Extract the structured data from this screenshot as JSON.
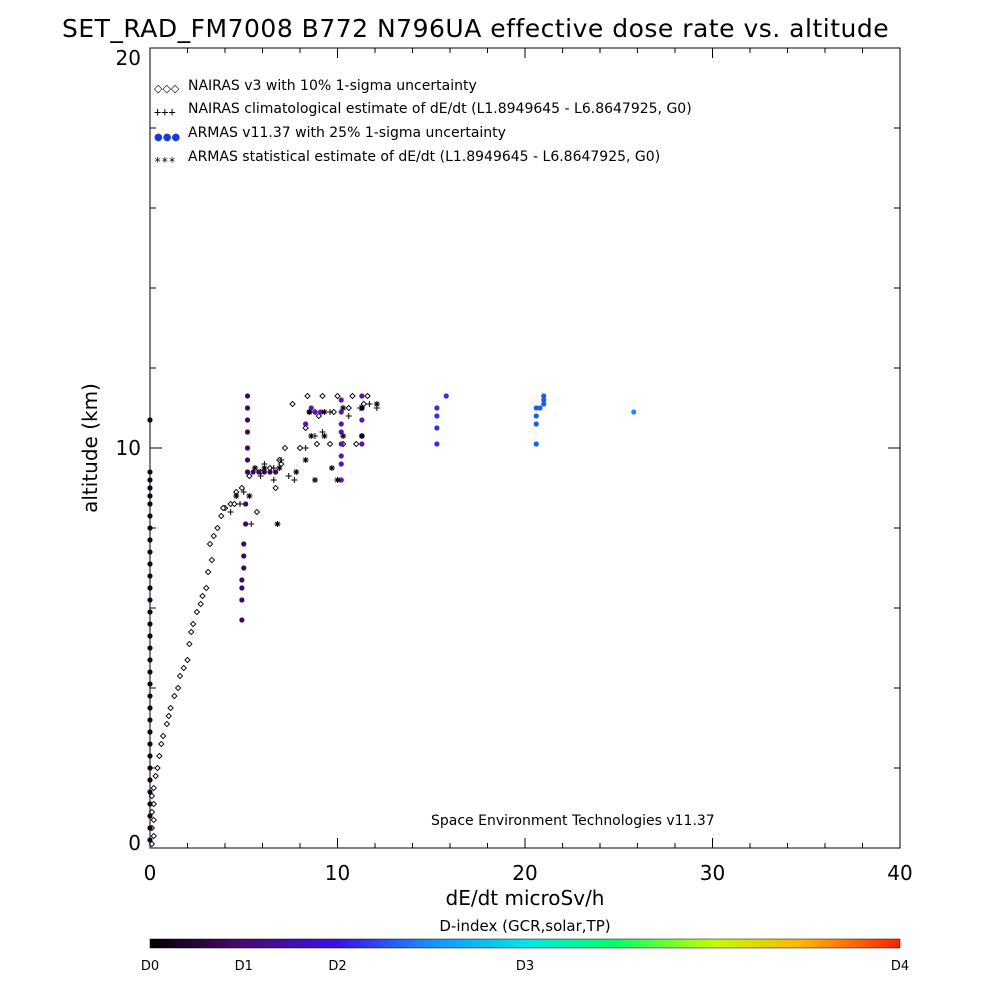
{
  "chart_data": {
    "type": "scatter",
    "title": "SET_RAD_FM7008  B772 N796UA effective dose rate vs. altitude",
    "xlabel": "dE/dt microSv/h",
    "ylabel": "altitude (km)",
    "xlim": [
      0,
      40
    ],
    "ylim": [
      0,
      20
    ],
    "x_ticks": [
      "0",
      "10",
      "20",
      "30",
      "40"
    ],
    "y_ticks": [
      "0",
      "10",
      "20"
    ],
    "legend_placement": "top-left",
    "legend": [
      {
        "symbol": "◇◇◇",
        "label": "NAIRAS v3 with 10% 1-sigma uncertainty"
      },
      {
        "symbol": "+++",
        "label": "NAIRAS climatological estimate of dE/dt (L1.8949645 - L6.8647925, G0)"
      },
      {
        "symbol": "●●●",
        "label": "ARMAS v11.37 with 25% 1-sigma uncertainty"
      },
      {
        "symbol": "***",
        "label": "ARMAS statistical estimate of dE/dt (L1.8949645 - L6.8647925, G0)"
      }
    ],
    "annotation": "Space Environment Technologies v11.37",
    "colorbar": {
      "title": "D-index (GCR,solar,TP)",
      "labels": [
        "D0",
        "D1",
        "D2",
        "D3",
        "D4"
      ],
      "label_positions": [
        0,
        0.125,
        0.25,
        0.5,
        1.0
      ]
    },
    "series": [
      {
        "name": "NAIRAS v3 with 10% 1-sigma uncertainty",
        "marker": "diamond",
        "points": [
          [
            0.1,
            0.1
          ],
          [
            0.2,
            0.3
          ],
          [
            0.1,
            0.5
          ],
          [
            0.2,
            0.7
          ],
          [
            0.1,
            0.9
          ],
          [
            0.2,
            1.1
          ],
          [
            0.1,
            1.3
          ],
          [
            0.2,
            1.5
          ],
          [
            0.3,
            1.8
          ],
          [
            0.4,
            2.0
          ],
          [
            0.5,
            2.3
          ],
          [
            0.6,
            2.6
          ],
          [
            0.7,
            2.8
          ],
          [
            0.9,
            3.1
          ],
          [
            1.0,
            3.3
          ],
          [
            1.1,
            3.5
          ],
          [
            1.3,
            3.8
          ],
          [
            1.5,
            4.0
          ],
          [
            1.6,
            4.3
          ],
          [
            1.8,
            4.5
          ],
          [
            2.0,
            4.7
          ],
          [
            2.1,
            5.1
          ],
          [
            2.2,
            5.4
          ],
          [
            2.3,
            5.6
          ],
          [
            2.5,
            5.9
          ],
          [
            2.7,
            6.1
          ],
          [
            2.8,
            6.3
          ],
          [
            3.0,
            6.5
          ],
          [
            3.1,
            6.9
          ],
          [
            3.3,
            7.2
          ],
          [
            3.2,
            7.6
          ],
          [
            3.4,
            7.8
          ],
          [
            3.6,
            8.0
          ],
          [
            3.8,
            8.3
          ],
          [
            4.0,
            8.5
          ],
          [
            4.3,
            8.6
          ],
          [
            4.6,
            8.9
          ],
          [
            4.9,
            9.0
          ],
          [
            5.3,
            9.3
          ],
          [
            5.9,
            9.4
          ],
          [
            6.4,
            9.5
          ],
          [
            6.9,
            9.7
          ],
          [
            7.2,
            10.0
          ],
          [
            8.0,
            10.0
          ],
          [
            8.9,
            10.1
          ],
          [
            9.6,
            10.1
          ],
          [
            10.3,
            10.1
          ],
          [
            11.0,
            10.1
          ],
          [
            8.3,
            10.5
          ],
          [
            9.0,
            10.8
          ],
          [
            9.8,
            10.9
          ],
          [
            10.6,
            11.0
          ],
          [
            11.4,
            11.1
          ],
          [
            7.6,
            11.1
          ],
          [
            8.4,
            11.3
          ],
          [
            9.2,
            11.3
          ],
          [
            10.0,
            11.3
          ],
          [
            10.8,
            11.3
          ],
          [
            11.6,
            11.3
          ],
          [
            5.7,
            8.4
          ],
          [
            6.7,
            9.0
          ],
          [
            3.9,
            8.5
          ],
          [
            4.5,
            8.6
          ],
          [
            7.0,
            9.6
          ]
        ]
      },
      {
        "name": "NAIRAS climatological estimate of dE/dt (L1.8949645 - L6.8647925, G0)",
        "marker": "plus",
        "points": [
          [
            4.3,
            8.4
          ],
          [
            4.8,
            8.6
          ],
          [
            5.0,
            8.9
          ],
          [
            5.4,
            8.1
          ],
          [
            5.9,
            9.3
          ],
          [
            6.6,
            9.5
          ],
          [
            7.0,
            9.7
          ],
          [
            7.4,
            9.3
          ],
          [
            6.1,
            9.6
          ],
          [
            8.3,
            10.0
          ],
          [
            8.8,
            10.3
          ],
          [
            9.2,
            10.4
          ],
          [
            8.8,
            10.9
          ],
          [
            9.6,
            10.9
          ],
          [
            10.6,
            10.8
          ],
          [
            11.2,
            11.0
          ],
          [
            11.7,
            11.1
          ],
          [
            12.1,
            11.0
          ],
          [
            6.6,
            9.2
          ],
          [
            7.7,
            9.2
          ]
        ]
      },
      {
        "name": "ARMAS v11.37 with 25% 1-sigma uncertainty",
        "marker": "dot",
        "points": [
          [
            0.0,
            10.7
          ],
          [
            0.0,
            9.4
          ],
          [
            0.0,
            9.2
          ],
          [
            0.0,
            9.0
          ],
          [
            0.0,
            8.8
          ],
          [
            0.0,
            8.6
          ],
          [
            0.0,
            8.3
          ],
          [
            0.0,
            8.0
          ],
          [
            0.0,
            7.7
          ],
          [
            0.0,
            7.4
          ],
          [
            0.0,
            7.1
          ],
          [
            0.0,
            6.8
          ],
          [
            0.0,
            6.5
          ],
          [
            0.0,
            6.2
          ],
          [
            0.0,
            5.9
          ],
          [
            0.0,
            5.6
          ],
          [
            0.0,
            5.3
          ],
          [
            0.0,
            5.0
          ],
          [
            0.0,
            4.7
          ],
          [
            0.0,
            4.4
          ],
          [
            0.0,
            4.1
          ],
          [
            0.0,
            3.8
          ],
          [
            0.0,
            3.5
          ],
          [
            0.0,
            3.2
          ],
          [
            0.0,
            2.9
          ],
          [
            0.0,
            2.6
          ],
          [
            0.0,
            2.3
          ],
          [
            0.0,
            2.0
          ],
          [
            0.0,
            1.7
          ],
          [
            0.0,
            1.4
          ],
          [
            0.0,
            1.1
          ],
          [
            0.0,
            0.8
          ],
          [
            0.0,
            0.5
          ],
          [
            0.0,
            0.2
          ],
          [
            5.2,
            11.3
          ],
          [
            5.2,
            11.0
          ],
          [
            5.2,
            10.7
          ],
          [
            5.2,
            10.4
          ],
          [
            5.2,
            10.0
          ],
          [
            5.2,
            9.7
          ],
          [
            5.2,
            9.4
          ],
          [
            5.1,
            8.6
          ],
          [
            5.1,
            8.1
          ],
          [
            5.0,
            7.6
          ],
          [
            5.0,
            7.3
          ],
          [
            5.0,
            7.0
          ],
          [
            4.9,
            6.7
          ],
          [
            4.9,
            6.5
          ],
          [
            4.9,
            6.2
          ],
          [
            4.9,
            5.7
          ],
          [
            5.5,
            9.4
          ],
          [
            5.8,
            9.4
          ],
          [
            6.1,
            9.4
          ],
          [
            6.4,
            9.4
          ],
          [
            6.7,
            9.4
          ],
          [
            8.5,
            10.9
          ],
          [
            8.8,
            10.9
          ],
          [
            9.1,
            10.9
          ],
          [
            8.3,
            10.6
          ],
          [
            8.6,
            11.0
          ],
          [
            10.2,
            11.2
          ],
          [
            10.2,
            10.9
          ],
          [
            10.2,
            10.6
          ],
          [
            10.2,
            10.4
          ],
          [
            10.2,
            10.1
          ],
          [
            10.2,
            9.8
          ],
          [
            10.2,
            9.6
          ],
          [
            10.2,
            9.2
          ],
          [
            11.3,
            11.3
          ],
          [
            11.3,
            11.0
          ],
          [
            11.3,
            10.7
          ],
          [
            11.3,
            10.3
          ],
          [
            11.3,
            10.1
          ],
          [
            15.3,
            11.0
          ],
          [
            15.3,
            10.8
          ],
          [
            15.3,
            10.5
          ],
          [
            15.3,
            10.1
          ],
          [
            15.8,
            11.3
          ],
          [
            20.6,
            11.0
          ],
          [
            20.6,
            10.8
          ],
          [
            20.6,
            10.6
          ],
          [
            20.6,
            10.1
          ],
          [
            20.8,
            11.0
          ],
          [
            21.0,
            11.1
          ],
          [
            21.0,
            11.2
          ],
          [
            21.0,
            11.3
          ],
          [
            25.8,
            10.9
          ]
        ]
      },
      {
        "name": "ARMAS statistical estimate of dE/dt (L1.8949645 - L6.8647925, G0)",
        "marker": "asterisk",
        "points": [
          [
            4.6,
            8.8
          ],
          [
            5.3,
            8.8
          ],
          [
            6.8,
            8.1
          ],
          [
            5.6,
            9.5
          ],
          [
            6.1,
            9.5
          ],
          [
            6.9,
            9.5
          ],
          [
            7.8,
            9.4
          ],
          [
            8.3,
            9.7
          ],
          [
            8.8,
            9.2
          ],
          [
            8.6,
            10.3
          ],
          [
            9.3,
            10.3
          ],
          [
            10.3,
            10.3
          ],
          [
            11.3,
            10.3
          ],
          [
            8.5,
            10.9
          ],
          [
            9.3,
            10.9
          ],
          [
            10.3,
            11.0
          ],
          [
            11.3,
            11.0
          ],
          [
            12.1,
            11.1
          ],
          [
            9.7,
            9.5
          ],
          [
            10.0,
            9.2
          ]
        ]
      }
    ]
  }
}
